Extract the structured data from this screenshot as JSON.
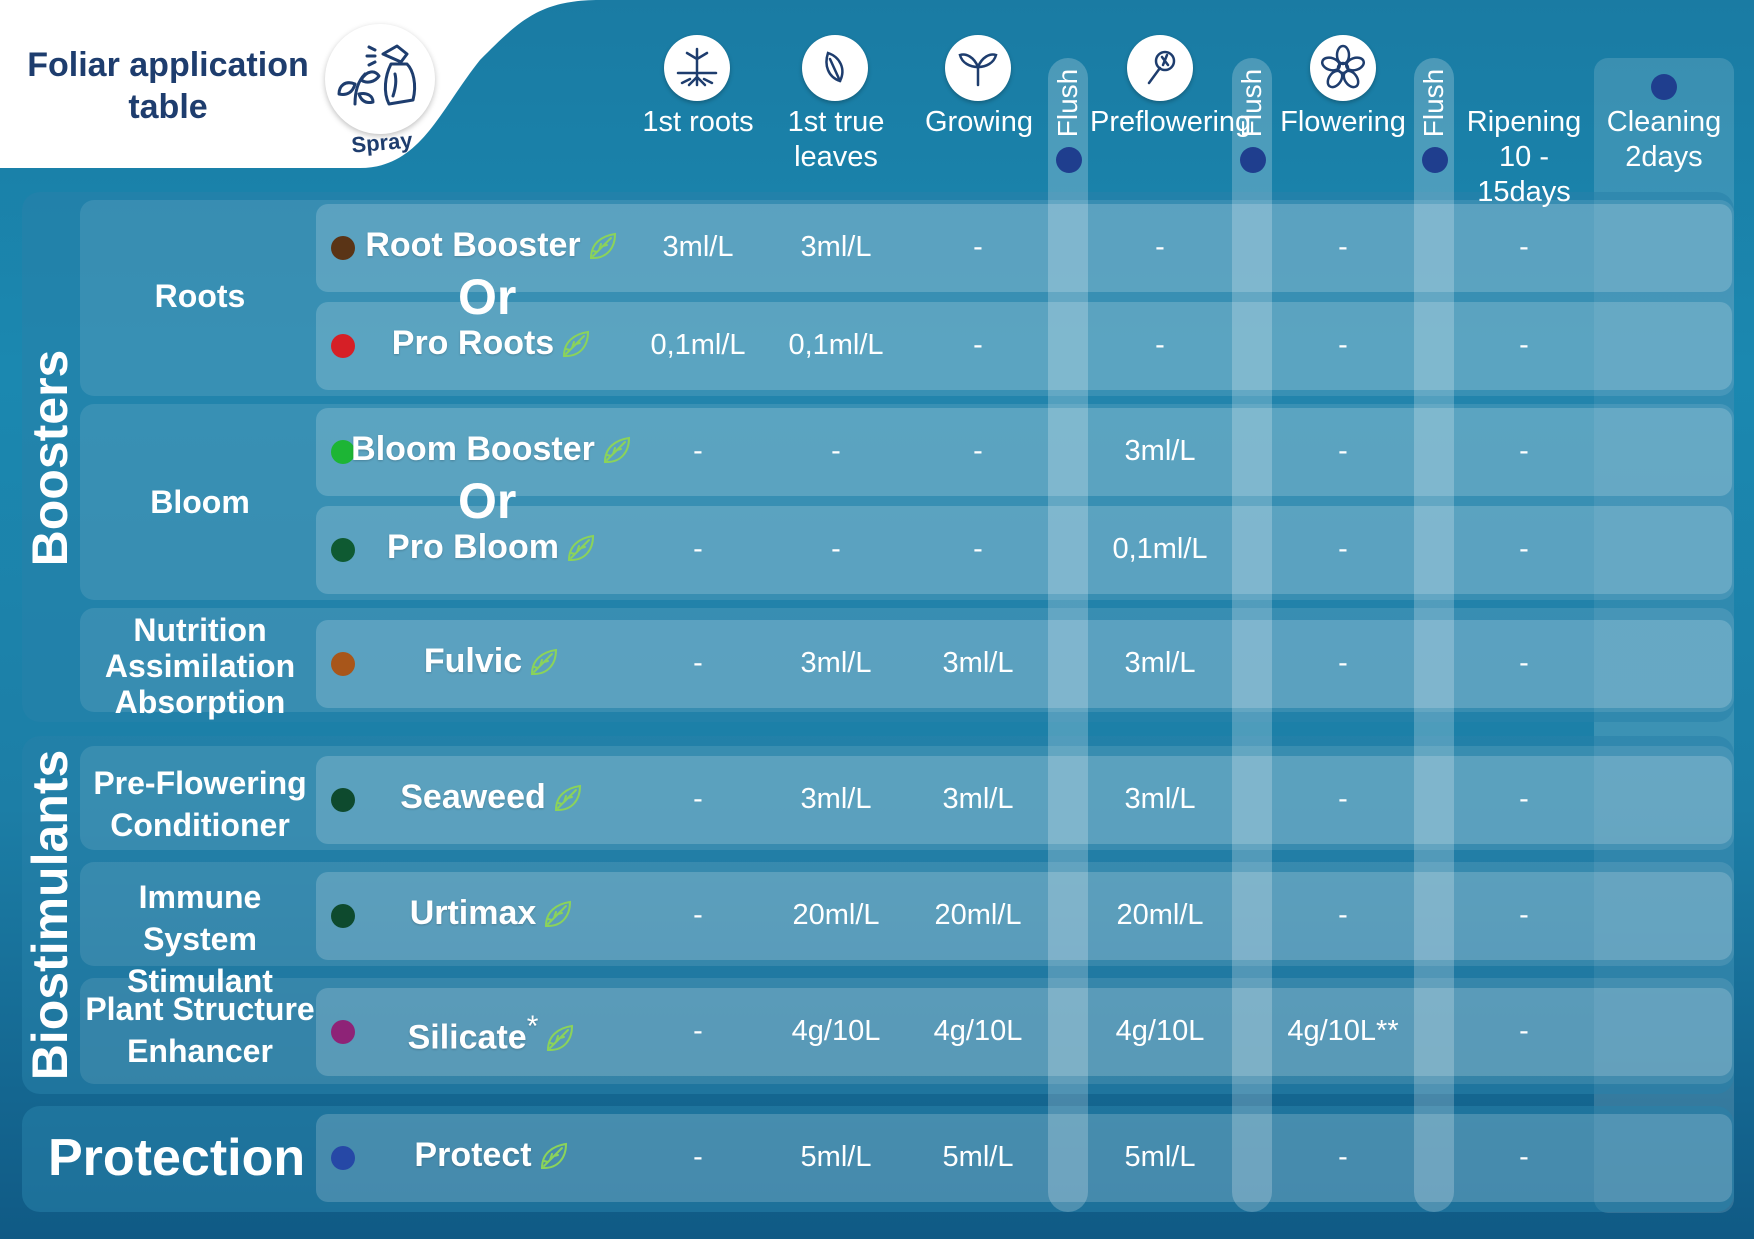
{
  "header": {
    "title_line1": "Foliar application",
    "title_line2": "table",
    "spray_label": "Spray"
  },
  "columns": [
    {
      "line1": "1st roots",
      "line2": "",
      "icon": "roots-icon"
    },
    {
      "line1": "1st true",
      "line2": "leaves",
      "icon": "leaf-icon"
    },
    {
      "line1": "Growing",
      "line2": "",
      "icon": "sprout-icon"
    },
    {
      "line1": "Preflowering",
      "line2": "",
      "icon": "preflower-icon"
    },
    {
      "line1": "Flowering",
      "line2": "",
      "icon": "flower-icon"
    },
    {
      "line1": "Ripening",
      "line2": "10 - 15days"
    },
    {
      "line1": "Cleaning",
      "line2": "2days"
    }
  ],
  "flush_label": "Flush",
  "sections": {
    "boosters": "Boosters",
    "biostimulants": "Biostimulants",
    "protection": "Protection"
  },
  "categories": {
    "roots": [
      "Roots"
    ],
    "bloom": [
      "Bloom"
    ],
    "nutrition": [
      "Nutrition",
      "Assimilation",
      "Absorption"
    ],
    "preflowering": [
      "Pre-Flowering",
      "Conditioner"
    ],
    "immune": [
      "Immune System",
      "Stimulant"
    ],
    "structure": [
      "Plant Structure",
      "Enhancer"
    ]
  },
  "or_text": "Or",
  "products": [
    {
      "name": "Root Booster",
      "suffix": "",
      "color": "#5a3416",
      "values": [
        "3ml/L",
        "3ml/L",
        "-",
        "-",
        "-",
        "-"
      ]
    },
    {
      "name": "Pro Roots",
      "suffix": "",
      "color": "#d61f26",
      "values": [
        "0,1ml/L",
        "0,1ml/L",
        "-",
        "-",
        "-",
        "-"
      ]
    },
    {
      "name": "Bloom Booster",
      "suffix": "",
      "color": "#1db535",
      "values": [
        "-",
        "-",
        "-",
        "3ml/L",
        "-",
        "-"
      ]
    },
    {
      "name": "Pro Bloom",
      "suffix": "",
      "color": "#0f5a32",
      "values": [
        "-",
        "-",
        "-",
        "0,1ml/L",
        "-",
        "-"
      ]
    },
    {
      "name": "Fulvic",
      "suffix": "",
      "color": "#a8561a",
      "values": [
        "-",
        "3ml/L",
        "3ml/L",
        "3ml/L",
        "-",
        "-"
      ]
    },
    {
      "name": "Seaweed",
      "suffix": "",
      "color": "#0e4a2e",
      "values": [
        "-",
        "3ml/L",
        "3ml/L",
        "3ml/L",
        "-",
        "-"
      ]
    },
    {
      "name": "Urtimax",
      "suffix": "",
      "color": "#0e4a2e",
      "values": [
        "-",
        "20ml/L",
        "20ml/L",
        "20ml/L",
        "-",
        "-"
      ]
    },
    {
      "name": "Silicate",
      "suffix": "*",
      "color": "#8e2377",
      "values": [
        "-",
        "4g/10L",
        "4g/10L",
        "4g/10L",
        "4g/10L**",
        "-"
      ]
    },
    {
      "name": "Protect",
      "suffix": "",
      "color": "#2648a6",
      "values": [
        "-",
        "5ml/L",
        "5ml/L",
        "5ml/L",
        "-",
        "-"
      ]
    }
  ]
}
